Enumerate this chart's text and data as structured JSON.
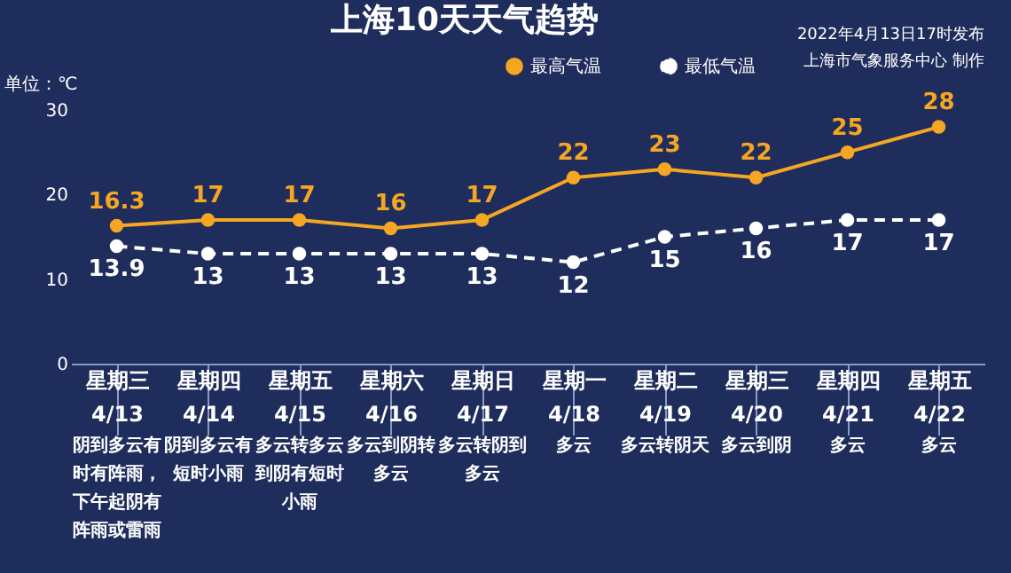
{
  "chart_data": {
    "type": "line",
    "title": "上海10天天气趋势",
    "ylabel": "单位：℃",
    "categories": [
      "星期三\n4/13",
      "星期四\n4/14",
      "星期五\n4/15",
      "星期六\n4/16",
      "星期日\n4/17",
      "星期一\n4/18",
      "星期二\n4/19",
      "星期三\n4/20",
      "星期四\n4/21",
      "星期五\n4/22"
    ],
    "series": [
      {
        "name": "最高气温",
        "color": "#f5a623",
        "line_style": "solid",
        "values": [
          16.3,
          17,
          17,
          16,
          17,
          22,
          23,
          22,
          25,
          28
        ]
      },
      {
        "name": "最低气温",
        "color": "#ffffff",
        "line_style": "dashed",
        "values": [
          13.9,
          13,
          13,
          13,
          13,
          12,
          15,
          16,
          17,
          17
        ]
      }
    ],
    "ylim": [
      0,
      30
    ],
    "yticks": [
      0,
      10,
      20,
      30
    ],
    "grid": false,
    "legend": "top right",
    "marker": "circle",
    "data_labels": true,
    "annotations": [
      "2022年4月13日17时发布",
      "上海市气象服务中心 制作",
      "阴到多云有时有阵雨，下午起阴有阵雨或雷雨",
      "阴到多云有短时小雨",
      "多云转多云到阴有短时小雨",
      "多云到阴转多云",
      "多云转阴到多云",
      "多云",
      "多云转阴天",
      "多云到阴",
      "多云",
      "多云"
    ]
  }
}
